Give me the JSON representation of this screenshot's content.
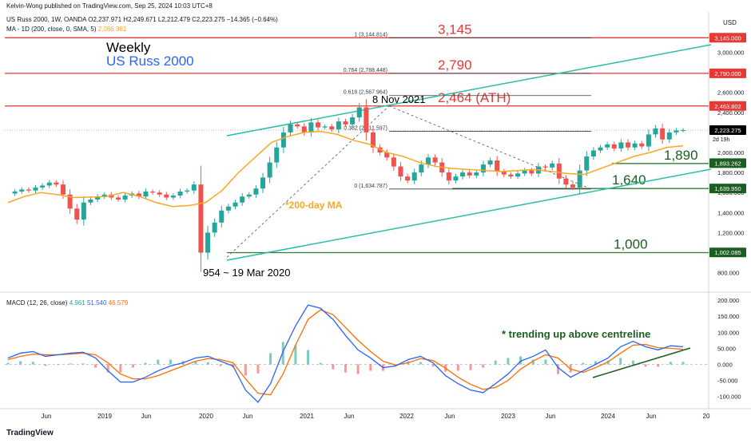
{
  "header": {
    "publisher_line": "Kelvin-Wong published on TradingView.com, Sep 25, 2024 10:03 UTC+8",
    "symbol_line": "US Russ 2000, 1W, OANDA  O2,237.971  H2,249.671  L2,212.479  C2,223.275  −14.365 (−0.64%)",
    "ma_line_label": "MA - 1D (200, close, 0, SMA, 5)",
    "ma_line_value": "2,066.981",
    "macd_line_label": "MACD (12, 26, close)",
    "macd_values": [
      "4.961",
      "51.540",
      "46.579"
    ]
  },
  "titles": {
    "timeframe": "Weekly",
    "instrument": "US Russ 2000"
  },
  "footer": {
    "logo": "TradingView"
  },
  "colors": {
    "up": "#26a69a",
    "down": "#ef5350",
    "ma": "#f9a825",
    "channel": "#26bfa5",
    "resistance": "#e53935",
    "support": "#2e7d32",
    "macd": "#2962ff",
    "signal": "#ff6d00",
    "annotation_dark_green": "#1b5e20",
    "price_tag": "#000000"
  },
  "chart_data": [
    {
      "type": "candlestick",
      "title": "US Russ 2000, 1W, OANDA",
      "currency": "USD",
      "y_axis_ticks": [
        "3,000.000",
        "2,800.000",
        "2,600.000",
        "2,400.000",
        "2,200.000",
        "2,000.000",
        "1,800.000",
        "1,600.000",
        "1,400.000",
        "1,200.000",
        "1,000.000",
        "800.000"
      ],
      "x_axis_ticks": [
        "Jun",
        "2019",
        "Jun",
        "2020",
        "Jun",
        "2021",
        "Jun",
        "2022",
        "Jun",
        "2023",
        "Jun",
        "2024",
        "Jun",
        "20"
      ],
      "weekly_closes_sampled": [
        1590,
        1610,
        1630,
        1620,
        1650,
        1670,
        1700,
        1680,
        1580,
        1440,
        1330,
        1500,
        1530,
        1560,
        1580,
        1550,
        1530,
        1570,
        1590,
        1560,
        1610,
        1600,
        1580,
        1550,
        1570,
        1610,
        1620,
        1680,
        1000,
        1200,
        1300,
        1420,
        1460,
        1500,
        1560,
        1580,
        1640,
        1750,
        1900,
        2050,
        2200,
        2280,
        2260,
        2200,
        2300,
        2250,
        2260,
        2230,
        2310,
        2280,
        2350,
        2450,
        2200,
        2050,
        2000,
        1950,
        1860,
        1760,
        1720,
        1800,
        1880,
        1950,
        1900,
        1800,
        1720,
        1760,
        1800,
        1770,
        1800,
        1880,
        1920,
        1810,
        1780,
        1760,
        1790,
        1820,
        1790,
        1860,
        1850,
        1890,
        1740,
        1680,
        1650,
        1820,
        1960,
        2020,
        2050,
        2080,
        2040,
        2100,
        2050,
        2090,
        2060,
        2180,
        2240,
        2130,
        2200,
        2220,
        2223
      ],
      "ma_200d": [
        1500,
        1560,
        1600,
        1580,
        1550,
        1555,
        1560,
        1600,
        1560,
        1500,
        1460,
        1470,
        1500,
        1620,
        1800,
        1950,
        2100,
        2160,
        2200,
        2210,
        2180,
        2120,
        2080,
        2000,
        1960,
        1900,
        1860,
        1840,
        1830,
        1820,
        1810,
        1820,
        1830,
        1810,
        1790,
        1780,
        1840,
        1900,
        1960,
        2000,
        2050,
        2067
      ],
      "lines": [
        {
          "label": "3,145",
          "value": 3145,
          "style": "resistance"
        },
        {
          "label": "2,790",
          "value": 2790,
          "style": "resistance"
        },
        {
          "label": "2,464 (ATH)",
          "value": 2464,
          "style": "resistance"
        },
        {
          "label": "1,890",
          "value": 1890,
          "style": "support"
        },
        {
          "label": "1,640",
          "value": 1640,
          "style": "support"
        },
        {
          "label": "1,000",
          "value": 1000,
          "style": "support"
        }
      ],
      "price_tags": [
        "3,145.000",
        "2,790.000",
        "2,463.802",
        "2,223.275",
        "1,893.262",
        "1,639.950",
        "1,002.085"
      ],
      "last_price_countdown": "2d 19h",
      "fibonacci": [
        {
          "label": "1 (3,144.814)",
          "value": 3144.814
        },
        {
          "label": "0.764 (2,788.448)",
          "value": 2788.448
        },
        {
          "label": "0.618 (2,567.964)",
          "value": 2567.964
        },
        {
          "label": "0.382 (2,211.597)",
          "value": 2211.597
        },
        {
          "label": "0 (1,634.787)",
          "value": 1634.787
        }
      ],
      "annotations": [
        "8 Nov 2021",
        "954 ~ 19 Mar 2020",
        "*200-day MA"
      ]
    },
    {
      "type": "macd",
      "title": "MACD (12, 26, close)",
      "values": {
        "histogram": 4.961,
        "macd": 51.54,
        "signal": 46.579
      },
      "y_axis_ticks": [
        "200.000",
        "150.000",
        "100.000",
        "50.000",
        "0.000",
        "-50.000",
        "-100.000"
      ],
      "macd_series_sampled": [
        20,
        35,
        40,
        25,
        30,
        35,
        38,
        20,
        -20,
        -55,
        -55,
        -40,
        -20,
        -5,
        5,
        20,
        25,
        10,
        -5,
        -80,
        -118,
        -60,
        40,
        120,
        185,
        175,
        140,
        90,
        45,
        20,
        -10,
        -5,
        15,
        25,
        5,
        -35,
        -60,
        -80,
        -88,
        -60,
        -30,
        10,
        25,
        45,
        -10,
        -40,
        -20,
        0,
        20,
        55,
        72,
        55,
        45,
        58,
        55
      ],
      "signal_series_sampled": [
        15,
        25,
        32,
        30,
        30,
        32,
        35,
        30,
        5,
        -30,
        -45,
        -45,
        -35,
        -20,
        -5,
        10,
        18,
        15,
        5,
        -45,
        -90,
        -95,
        -30,
        60,
        140,
        170,
        155,
        115,
        75,
        40,
        10,
        -2,
        5,
        18,
        12,
        -12,
        -40,
        -62,
        -78,
        -72,
        -50,
        -15,
        10,
        30,
        20,
        -15,
        -25,
        -10,
        8,
        35,
        60,
        62,
        52,
        50,
        47
      ],
      "annotation": "* trending up above centreline"
    }
  ]
}
